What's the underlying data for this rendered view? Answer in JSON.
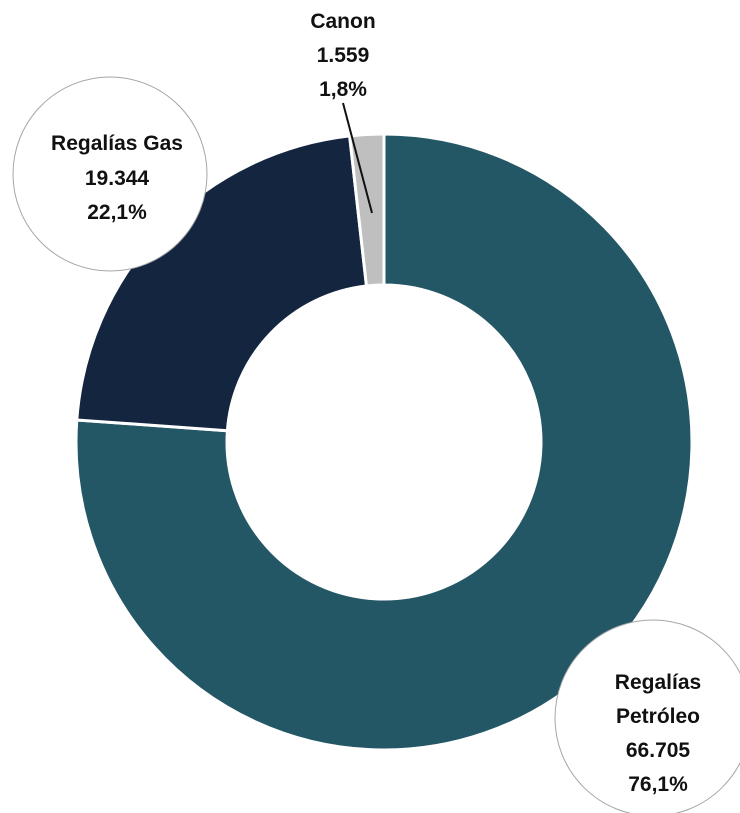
{
  "chart_data": {
    "type": "donut",
    "title": "",
    "slices": [
      {
        "name": "Regalías Petróleo",
        "label_lines": [
          "Regalías",
          "Petróleo"
        ],
        "value": 66705,
        "value_label": "66.705",
        "percent_label": "76,1%",
        "color": "#235766"
      },
      {
        "name": "Regalías Gas",
        "label_lines": [
          "Regalías Gas"
        ],
        "value": 19344,
        "value_label": "19.344",
        "percent_label": "22,1%",
        "color": "#13253f"
      },
      {
        "name": "Canon",
        "label_lines": [
          "Canon"
        ],
        "value": 1559,
        "value_label": "1.559",
        "percent_label": "1,8%",
        "color": "#bfbfbf"
      }
    ],
    "start": "12 o'clock",
    "direction": "clockwise",
    "separator_color": "#ffffff"
  }
}
